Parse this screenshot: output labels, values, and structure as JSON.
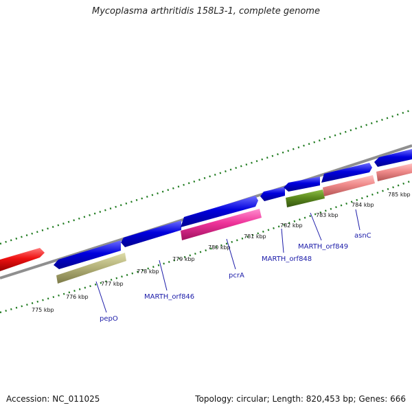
{
  "title": "Mycoplasma arthritidis 158L3-1, complete genome",
  "footer": {
    "accession": "Accession: NC_011025",
    "summary": "Topology: circular; Length: 820,453 bp; Genes: 666"
  },
  "colors": {
    "backbone": "#8f8f8f",
    "forward_gene": "#0000dd",
    "reverse_gene": "#ee3399",
    "pepO": "#b5b37a",
    "orf848": "#5c8a1e",
    "asnC": "#ef8a8a",
    "previous_gene": "#ee1111",
    "scale_ticks": "#1e7a1e"
  },
  "scale_labels": [
    "775 kbp",
    "776 kbp",
    "777 kbp",
    "778 kbp",
    "779 kbp",
    "780 kbp",
    "781 kbp",
    "782 kbp",
    "783 kbp",
    "784 kbp",
    "785 kbp"
  ],
  "gene_labels": [
    "pepO",
    "MARTH_orf846",
    "pcrA",
    "MARTH_orf848",
    "MARTH_orf849",
    "asnC"
  ]
}
